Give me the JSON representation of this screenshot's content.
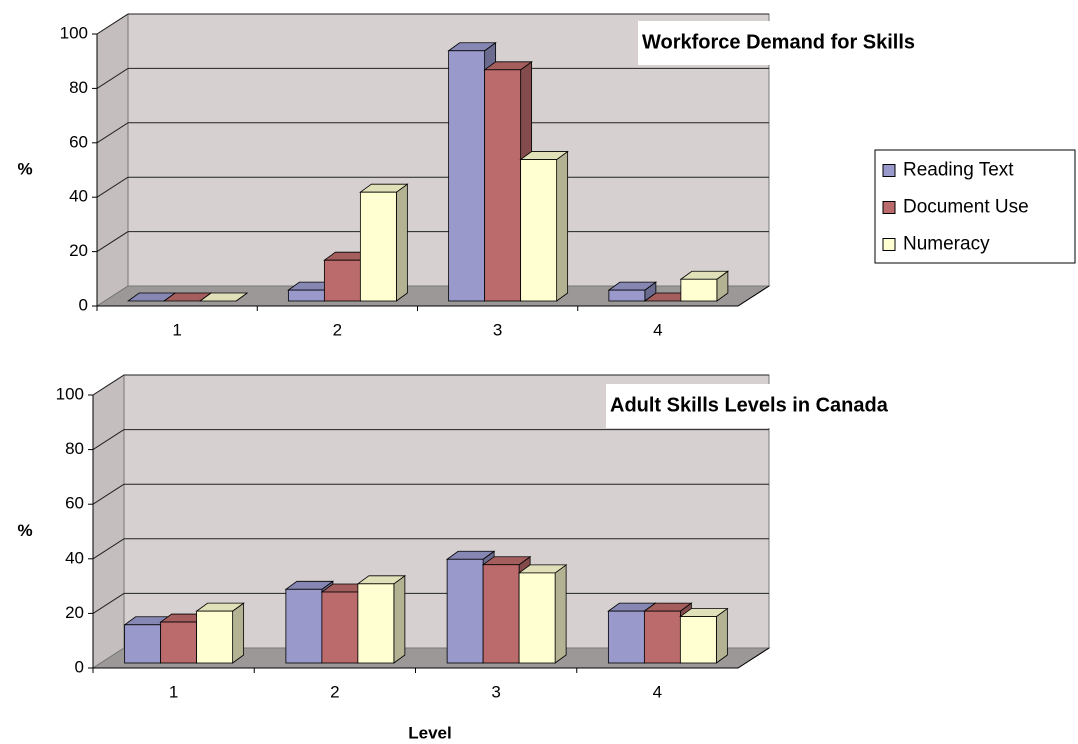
{
  "chart_data": [
    {
      "type": "bar3d",
      "title": "Workforce Demand for Skills",
      "y_label": "%",
      "categories": [
        "1",
        "2",
        "3",
        "4"
      ],
      "series": [
        {
          "name": "Reading Text",
          "color": "#9999cc",
          "values": [
            0,
            4,
            92,
            4
          ]
        },
        {
          "name": "Document Use",
          "color": "#bb6b6b",
          "values": [
            0,
            15,
            85,
            0
          ]
        },
        {
          "name": "Numeracy",
          "color": "#ffffd2",
          "values": [
            0,
            40,
            52,
            8
          ]
        }
      ],
      "ylim": [
        0,
        100
      ],
      "yticks": [
        0,
        20,
        40,
        60,
        80,
        100
      ],
      "grid": true,
      "legend": "right"
    },
    {
      "type": "bar3d",
      "title": "Adult Skills Levels in Canada",
      "y_label": "%",
      "x_label": "Level",
      "categories": [
        "1",
        "2",
        "3",
        "4"
      ],
      "series": [
        {
          "color": "#9999cc",
          "values": [
            14,
            27,
            38,
            19
          ]
        },
        {
          "color": "#bb6b6b",
          "values": [
            15,
            26,
            36,
            19
          ]
        },
        {
          "color": "#ffffd2",
          "values": [
            19,
            29,
            33,
            17
          ]
        }
      ],
      "ylim": [
        0,
        100
      ],
      "yticks": [
        0,
        20,
        40,
        60,
        80,
        100
      ],
      "grid": true
    }
  ]
}
